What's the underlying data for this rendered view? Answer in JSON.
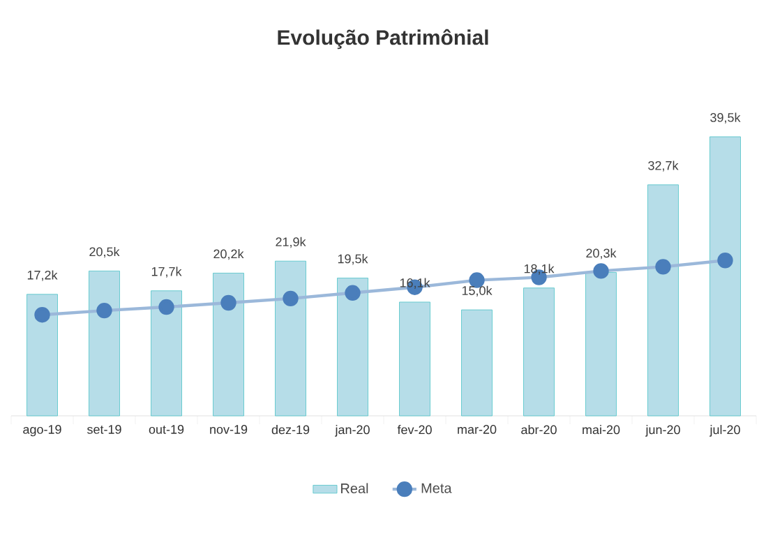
{
  "chart_data": {
    "type": "bar",
    "title": "Evolução Patrimônial",
    "categories": [
      "ago-19",
      "set-19",
      "out-19",
      "nov-19",
      "dez-19",
      "jan-20",
      "fev-20",
      "mar-20",
      "abr-20",
      "mai-20",
      "jun-20",
      "jul-20"
    ],
    "series": [
      {
        "name": "Real",
        "type": "bar",
        "color": "#b6dde8",
        "values": [
          17.2,
          20.5,
          17.7,
          20.2,
          21.9,
          19.5,
          16.1,
          15.0,
          18.1,
          20.3,
          32.7,
          39.5
        ],
        "value_labels": [
          "17,2k",
          "20,5k",
          "17,7k",
          "20,2k",
          "21,9k",
          "19,5k",
          "16,1k",
          "15,0k",
          "18,1k",
          "20,3k",
          "32,7k",
          "39,5k"
        ]
      },
      {
        "name": "Meta",
        "type": "line",
        "color": "#4a7ebb",
        "marker": "circle",
        "line_style": "solid",
        "values": [
          14.3,
          14.9,
          15.4,
          16.0,
          16.6,
          17.4,
          18.2,
          19.2,
          19.6,
          20.5,
          21.1,
          22.0
        ]
      }
    ],
    "tick_labels": "x",
    "legend": "bottom"
  }
}
